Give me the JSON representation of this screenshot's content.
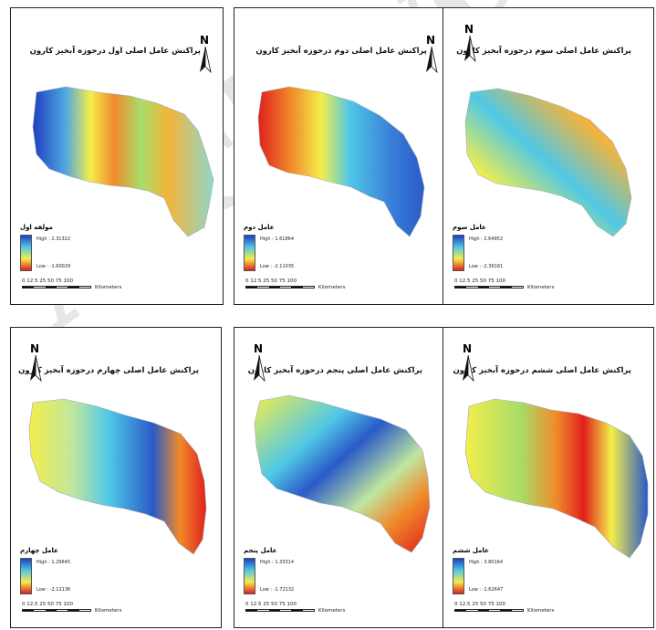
{
  "panels": [
    {
      "title": "پراکنش عامل اصلی اول درحوزه آبخیز کارون",
      "legend_title": "مولفه اول",
      "high": "High : 2.31322",
      "low": "Low : -1.60029",
      "scale_ticks": "0  12.5 25       50       75      100",
      "scale_units": "Kilometers",
      "surface": "blue west, red-orange center band, yellow-green east"
    },
    {
      "title": "پراکنش عامل اصلی دوم درحوزه آبخیز کارون",
      "legend_title": "عامل دوم",
      "high": "High : 1.61864",
      "low": "Low : -2.11035",
      "scale_ticks": "0  12.5 25       50       75      100",
      "scale_units": "Kilometers",
      "surface": "red-orange west, cyan-blue east"
    },
    {
      "title": "پراکنش عامل اصلی سوم درحوزه آبخیز کارون",
      "legend_title": "عامل سوم",
      "high": "High : 2.64952",
      "low": "Low : -2.36161",
      "scale_ticks": "0  12.5 25       50       75      100",
      "scale_units": "Kilometers",
      "surface": "red southwest, blue north, orange east"
    },
    {
      "title": "پراکنش عامل اصلی چهارم درحوزه آبخیز کارون",
      "legend_title": "عامل چهارم",
      "high": "High : 1.29645",
      "low": "Low : -2.12136",
      "scale_ticks": "0  12.5 25       50       75      100",
      "scale_units": "Kilometers",
      "surface": "yellow west, blue center-east, red southeast"
    },
    {
      "title": "پراکنش عامل اصلی پنجم درحوزه آبخیز کارون",
      "legend_title": "عامل پنجم",
      "high": "High : 1.33314",
      "low": "Low : -1.72132",
      "scale_ticks": "0  12.5 25       50       75      100",
      "scale_units": "Kilometers",
      "surface": "mixed; blue north band, red southeast"
    },
    {
      "title": "پراکنش عامل اصلی ششم درحوزه آبخیز کارون",
      "legend_title": "عامل ششم",
      "high": "High : 3.80164",
      "low": "Low : -1.62647",
      "scale_ticks": "0  12.5 25       50       75      100",
      "scale_units": "Kilometers",
      "surface": "yellow-green west, red center band, blue east"
    }
  ],
  "north_label": "N",
  "colors": {
    "high": "#1f3fbf",
    "mid_cyan": "#4fc8e6",
    "mid_yellow": "#f4ee4a",
    "low": "#e0201c"
  },
  "watermark": "Archive Of"
}
